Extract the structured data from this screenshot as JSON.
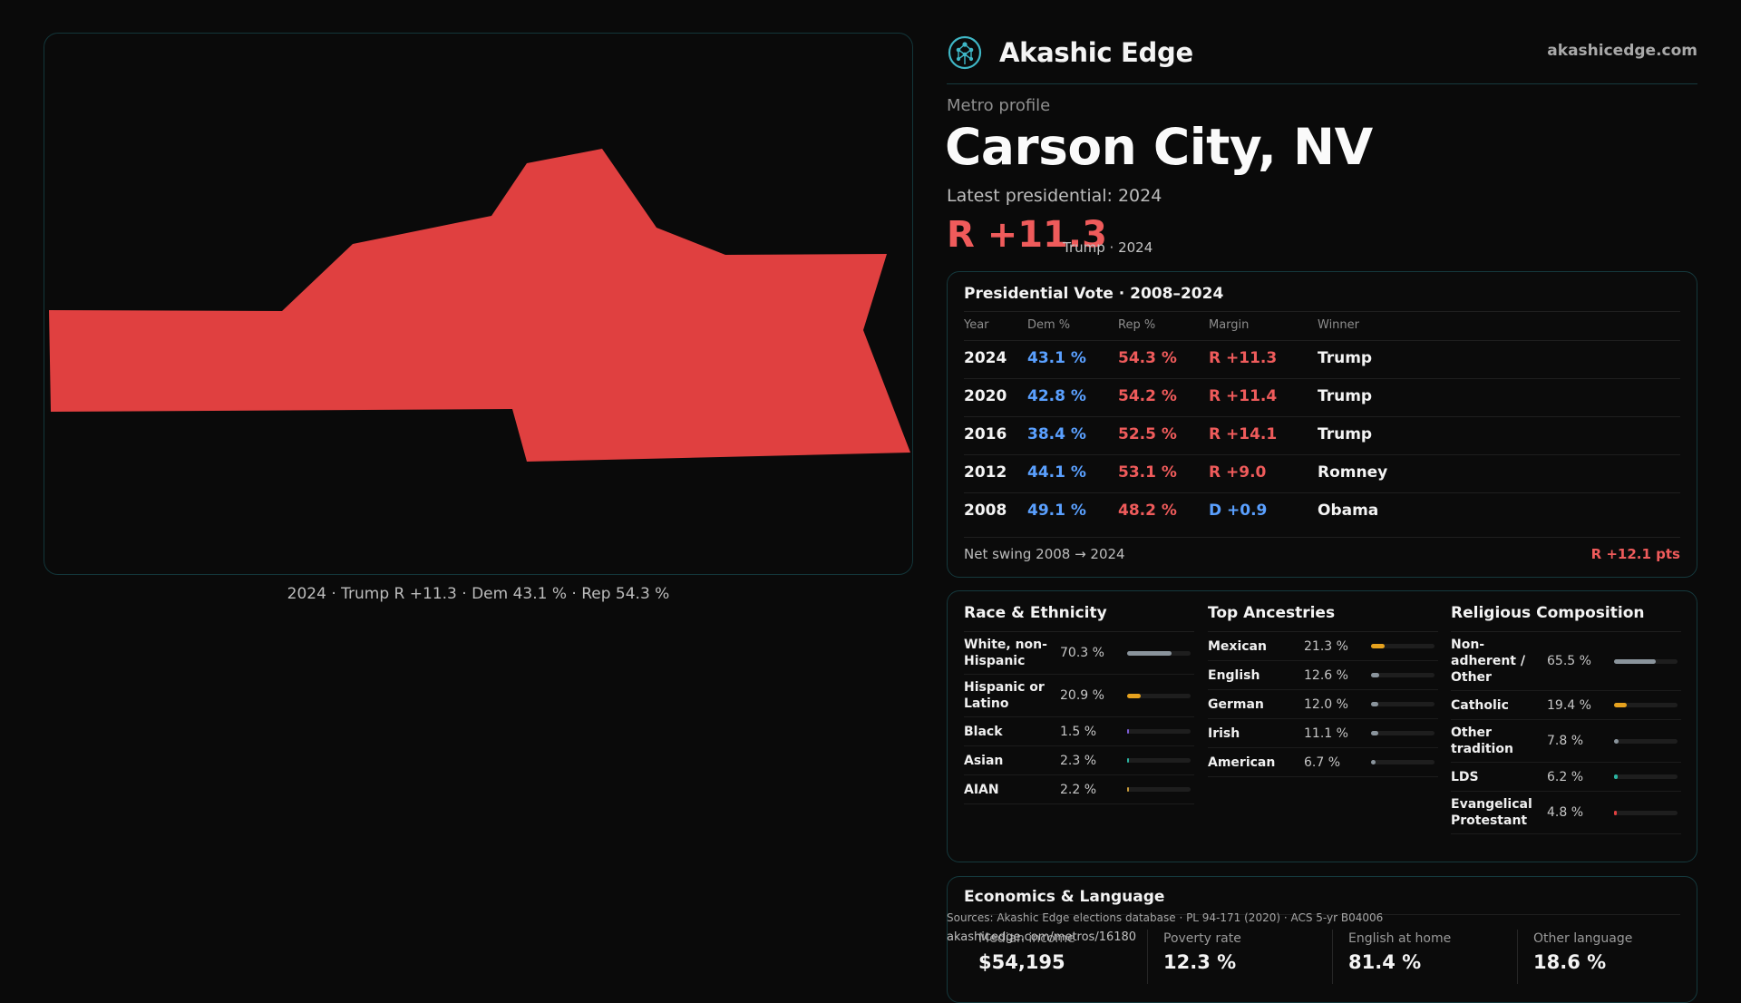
{
  "brand": {
    "name": "Akashic Edge",
    "url": "akashicedge.com",
    "logo_icon": "tree-of-life-icon"
  },
  "map": {
    "fill_color": "#e04040",
    "caption": "2024 · Trump R +11.3 · Dem 43.1 % · Rep 54.3 %"
  },
  "profile": {
    "eyebrow": "Metro profile",
    "title": "Carson City, NV",
    "latest": "Latest presidential: 2024",
    "margin": "R +11.3",
    "margin_sub": "Trump · 2024"
  },
  "vote": {
    "title": "Presidential Vote · 2008–2024",
    "headers": {
      "year": "Year",
      "dem": "Dem %",
      "rep": "Rep %",
      "margin": "Margin",
      "winner": "Winner"
    },
    "rows": [
      {
        "year": "2024",
        "dem": "43.1 %",
        "rep": "54.3 %",
        "margin": "R +11.3",
        "winner": "Trump"
      },
      {
        "year": "2020",
        "dem": "42.8 %",
        "rep": "54.2 %",
        "margin": "R +11.4",
        "winner": "Trump"
      },
      {
        "year": "2016",
        "dem": "38.4 %",
        "rep": "52.5 %",
        "margin": "R +14.1",
        "winner": "Trump"
      },
      {
        "year": "2012",
        "dem": "44.1 %",
        "rep": "53.1 %",
        "margin": "R +9.0",
        "winner": "Romney"
      },
      {
        "year": "2008",
        "dem": "49.1 %",
        "rep": "48.2 %",
        "margin": "D +0.9",
        "winner": "Obama"
      }
    ],
    "footer_label": "Net swing 2008 → 2024",
    "footer_value": "R +12.1 pts"
  },
  "race": {
    "title": "Race & Ethnicity",
    "items": [
      {
        "label": "White, non-Hispanic",
        "pct": "70.3 %",
        "value": 0.703,
        "color": "#8a949c"
      },
      {
        "label": "Hispanic or Latino",
        "pct": "20.9 %",
        "value": 0.209,
        "color": "#e6a21e"
      },
      {
        "label": "Black",
        "pct": "1.5 %",
        "value": 0.015,
        "color": "#7c5cd6"
      },
      {
        "label": "Asian",
        "pct": "2.3 %",
        "value": 0.023,
        "color": "#2bb3a0"
      },
      {
        "label": "AIAN",
        "pct": "2.2 %",
        "value": 0.022,
        "color": "#c79a3a"
      }
    ]
  },
  "ancestry": {
    "title": "Top Ancestries",
    "items": [
      {
        "label": "Mexican",
        "pct": "21.3 %",
        "value": 0.213,
        "color": "#e6a21e"
      },
      {
        "label": "English",
        "pct": "12.6 %",
        "value": 0.126,
        "color": "#8a949c"
      },
      {
        "label": "German",
        "pct": "12.0 %",
        "value": 0.12,
        "color": "#8a949c"
      },
      {
        "label": "Irish",
        "pct": "11.1 %",
        "value": 0.111,
        "color": "#8a949c"
      },
      {
        "label": "American",
        "pct": "6.7 %",
        "value": 0.067,
        "color": "#8a949c"
      }
    ]
  },
  "religion": {
    "title": "Religious Composition",
    "items": [
      {
        "label": "Non-adherent / Other",
        "pct": "65.5 %",
        "value": 0.655,
        "color": "#8a949c"
      },
      {
        "label": "Catholic",
        "pct": "19.4 %",
        "value": 0.194,
        "color": "#e6a21e"
      },
      {
        "label": "Other tradition",
        "pct": "7.8 %",
        "value": 0.078,
        "color": "#8a949c"
      },
      {
        "label": "LDS",
        "pct": "6.2 %",
        "value": 0.062,
        "color": "#2bb3a0"
      },
      {
        "label": "Evangelical Protestant",
        "pct": "4.8 %",
        "value": 0.048,
        "color": "#e04040"
      }
    ]
  },
  "economics": {
    "title": "Economics & Language",
    "items": [
      {
        "label": "Median income",
        "value": "$54,195"
      },
      {
        "label": "Poverty rate",
        "value": "12.3 %"
      },
      {
        "label": "English at home",
        "value": "81.4 %"
      },
      {
        "label": "Other language",
        "value": "18.6 %"
      }
    ]
  },
  "sources": "Sources: Akashic Edge elections database · PL 94-171 (2020) · ACS 5-yr B04006",
  "source_url": "akashicedge.com/metros/16180"
}
